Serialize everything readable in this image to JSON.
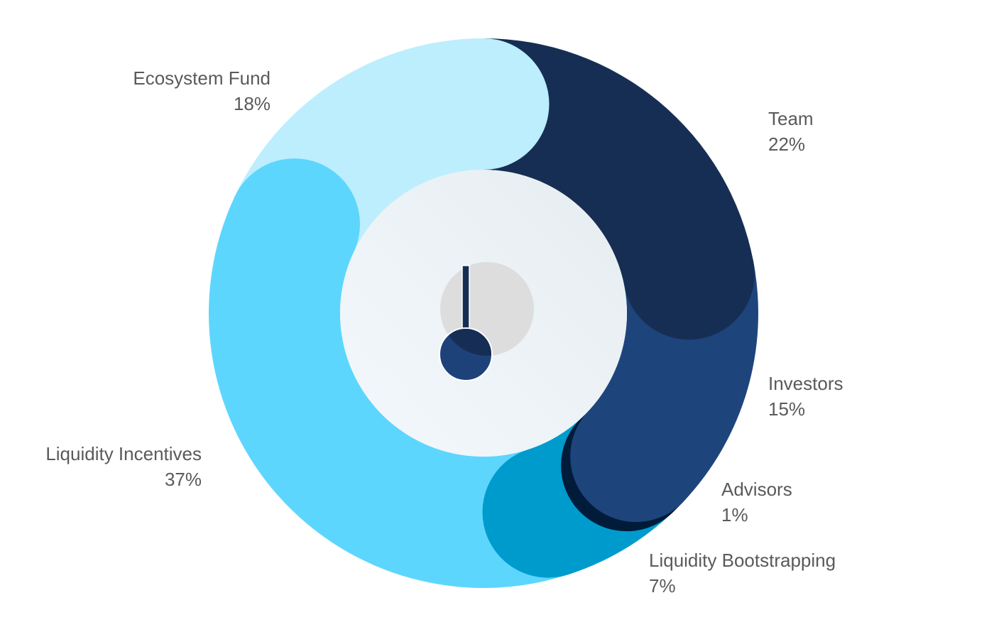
{
  "chart_data": {
    "type": "pie",
    "title": "",
    "start_angle_deg": 0,
    "direction": "clockwise",
    "slices": [
      {
        "label": "Team",
        "value": 22,
        "display": "22%",
        "color": "#172e54"
      },
      {
        "label": "Investors",
        "value": 15,
        "display": "15%",
        "color": "#1e447c"
      },
      {
        "label": "Advisors",
        "value": 1,
        "display": "1%",
        "color": "#001c3a"
      },
      {
        "label": "Liquidity Bootstrapping",
        "value": 7,
        "display": "7%",
        "color": "#009bcd"
      },
      {
        "label": "Liquidity Incentives",
        "value": 37,
        "display": "37%",
        "color": "#5dd6fe"
      },
      {
        "label": "Ecosystem Fund",
        "value": 18,
        "display": "18%",
        "color": "#bdeefd"
      }
    ],
    "donut": true,
    "legend": "none"
  }
}
